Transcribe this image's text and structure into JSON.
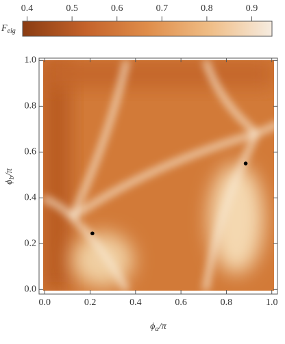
{
  "chart_data": {
    "type": "scatter",
    "colorbar": {
      "label": [
        "F",
        "eig"
      ],
      "clim": [
        0.39,
        0.945
      ],
      "ticks": [
        0.4,
        0.5,
        0.6,
        0.7,
        0.8,
        0.9
      ],
      "colors": [
        "#8a3c12",
        "#c4622a",
        "#df8d4a",
        "#efbd86",
        "#f6ece0"
      ]
    },
    "xlabel": [
      "ϕ",
      "a",
      "/π"
    ],
    "ylabel": [
      "ϕ",
      "b",
      "/π"
    ],
    "x": [
      0.21,
      0.885
    ],
    "values": [
      0.245,
      0.55
    ],
    "color": "#000000",
    "xlim": [
      -0.025,
      1.025
    ],
    "ylim": [
      -0.02,
      1.01
    ],
    "xticks": [
      {
        "value": 0,
        "label": "0.0"
      },
      0.2,
      0.4,
      0.6,
      0.8,
      {
        "value": 1,
        "label": "1.0"
      }
    ],
    "yticks": [
      {
        "value": 0,
        "label": "0.0"
      },
      0.2,
      0.4,
      0.6,
      0.8,
      {
        "value": 1,
        "label": "1.0"
      }
    ]
  }
}
